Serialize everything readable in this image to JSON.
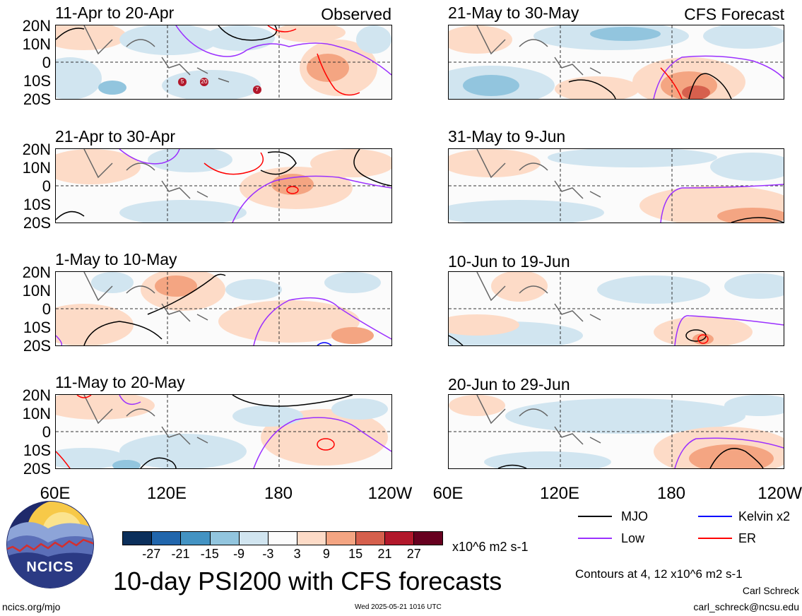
{
  "panels": {
    "left": [
      {
        "title": "11-Apr to 20-Apr",
        "tag": "Observed"
      },
      {
        "title": "21-Apr to 30-Apr",
        "tag": ""
      },
      {
        "title": "1-May to 10-May",
        "tag": ""
      },
      {
        "title": "11-May to 20-May",
        "tag": ""
      }
    ],
    "right": [
      {
        "title": "21-May to 30-May",
        "tag": "CFS Forecast"
      },
      {
        "title": "31-May to 9-Jun",
        "tag": ""
      },
      {
        "title": "10-Jun to 19-Jun",
        "tag": ""
      },
      {
        "title": "20-Jun to 29-Jun",
        "tag": ""
      }
    ]
  },
  "lat_labels": [
    "20N",
    "10N",
    "0",
    "10S",
    "20S"
  ],
  "lon_labels": [
    "60E",
    "120E",
    "180",
    "120W"
  ],
  "colorbar": {
    "ticks": [
      "-27",
      "-21",
      "-15",
      "-9",
      "-3",
      "3",
      "9",
      "15",
      "21",
      "27"
    ],
    "colors": [
      "#0b2f5b",
      "#2166ac",
      "#4393c3",
      "#92c5de",
      "#d1e5f0",
      "#fbfbfb",
      "#fddbc7",
      "#f4a582",
      "#d6604d",
      "#b2182b",
      "#67001f"
    ],
    "units": "x10^6 m2 s-1"
  },
  "legend": [
    {
      "label": "MJO",
      "color": "#000000"
    },
    {
      "label": "Kelvin x2",
      "color": "#0000ff"
    },
    {
      "label": "Low",
      "color": "#9b30ff"
    },
    {
      "label": "ER",
      "color": "#ff0000"
    }
  ],
  "contour_note": "Contours at 4, 12 x10^6 m2 s-1",
  "main_title": "10-day PSI200 with CFS forecasts",
  "logo": {
    "text": "NCICS"
  },
  "footer": {
    "url": "ncics.org/mjo",
    "timestamp": "Wed 2025-05-21 1016 UTC",
    "author": "Carl Schreck",
    "email": "carl_schreck@ncsu.edu"
  },
  "storm_markers": [
    "5",
    "20",
    "7"
  ]
}
